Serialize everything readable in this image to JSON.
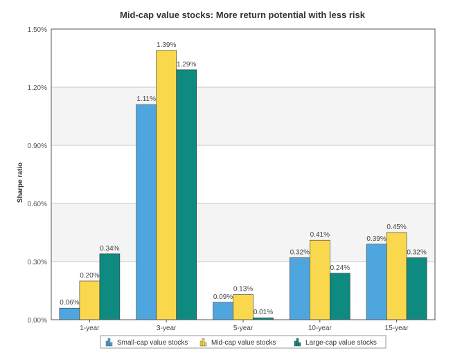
{
  "chart_data": {
    "type": "bar",
    "title": "Mid-cap value stocks: More return potential with less risk",
    "xlabel": "",
    "ylabel": "Sharpe ratio",
    "ylim": [
      0,
      1.5
    ],
    "yticks": [
      "0.00%",
      "0.30%",
      "0.60%",
      "0.90%",
      "1.20%",
      "1.50%"
    ],
    "ytick_values": [
      0,
      0.3,
      0.6,
      0.9,
      1.2,
      1.5
    ],
    "categories": [
      "1-year",
      "3-year",
      "5-year",
      "10-year",
      "15-year"
    ],
    "series": [
      {
        "name": "Small-cap value stocks",
        "color": "#4FA6DF",
        "values": [
          0.06,
          1.11,
          0.09,
          0.32,
          0.39
        ],
        "labels": [
          "0.06%",
          "1.11%",
          "0.09%",
          "0.32%",
          "0.39%"
        ]
      },
      {
        "name": "Mid-cap value stocks",
        "color": "#F9D84E",
        "values": [
          0.2,
          1.39,
          0.13,
          0.41,
          0.45
        ],
        "labels": [
          "0.20%",
          "1.39%",
          "0.13%",
          "0.41%",
          "0.45%"
        ]
      },
      {
        "name": "Large-cap value stocks",
        "color": "#0E8A80",
        "values": [
          0.34,
          1.29,
          0.01,
          0.24,
          0.32
        ],
        "labels": [
          "0.34%",
          "1.29%",
          "0.01%",
          "0.24%",
          "0.32%"
        ]
      }
    ],
    "grid": true,
    "legend_position": "bottom"
  }
}
